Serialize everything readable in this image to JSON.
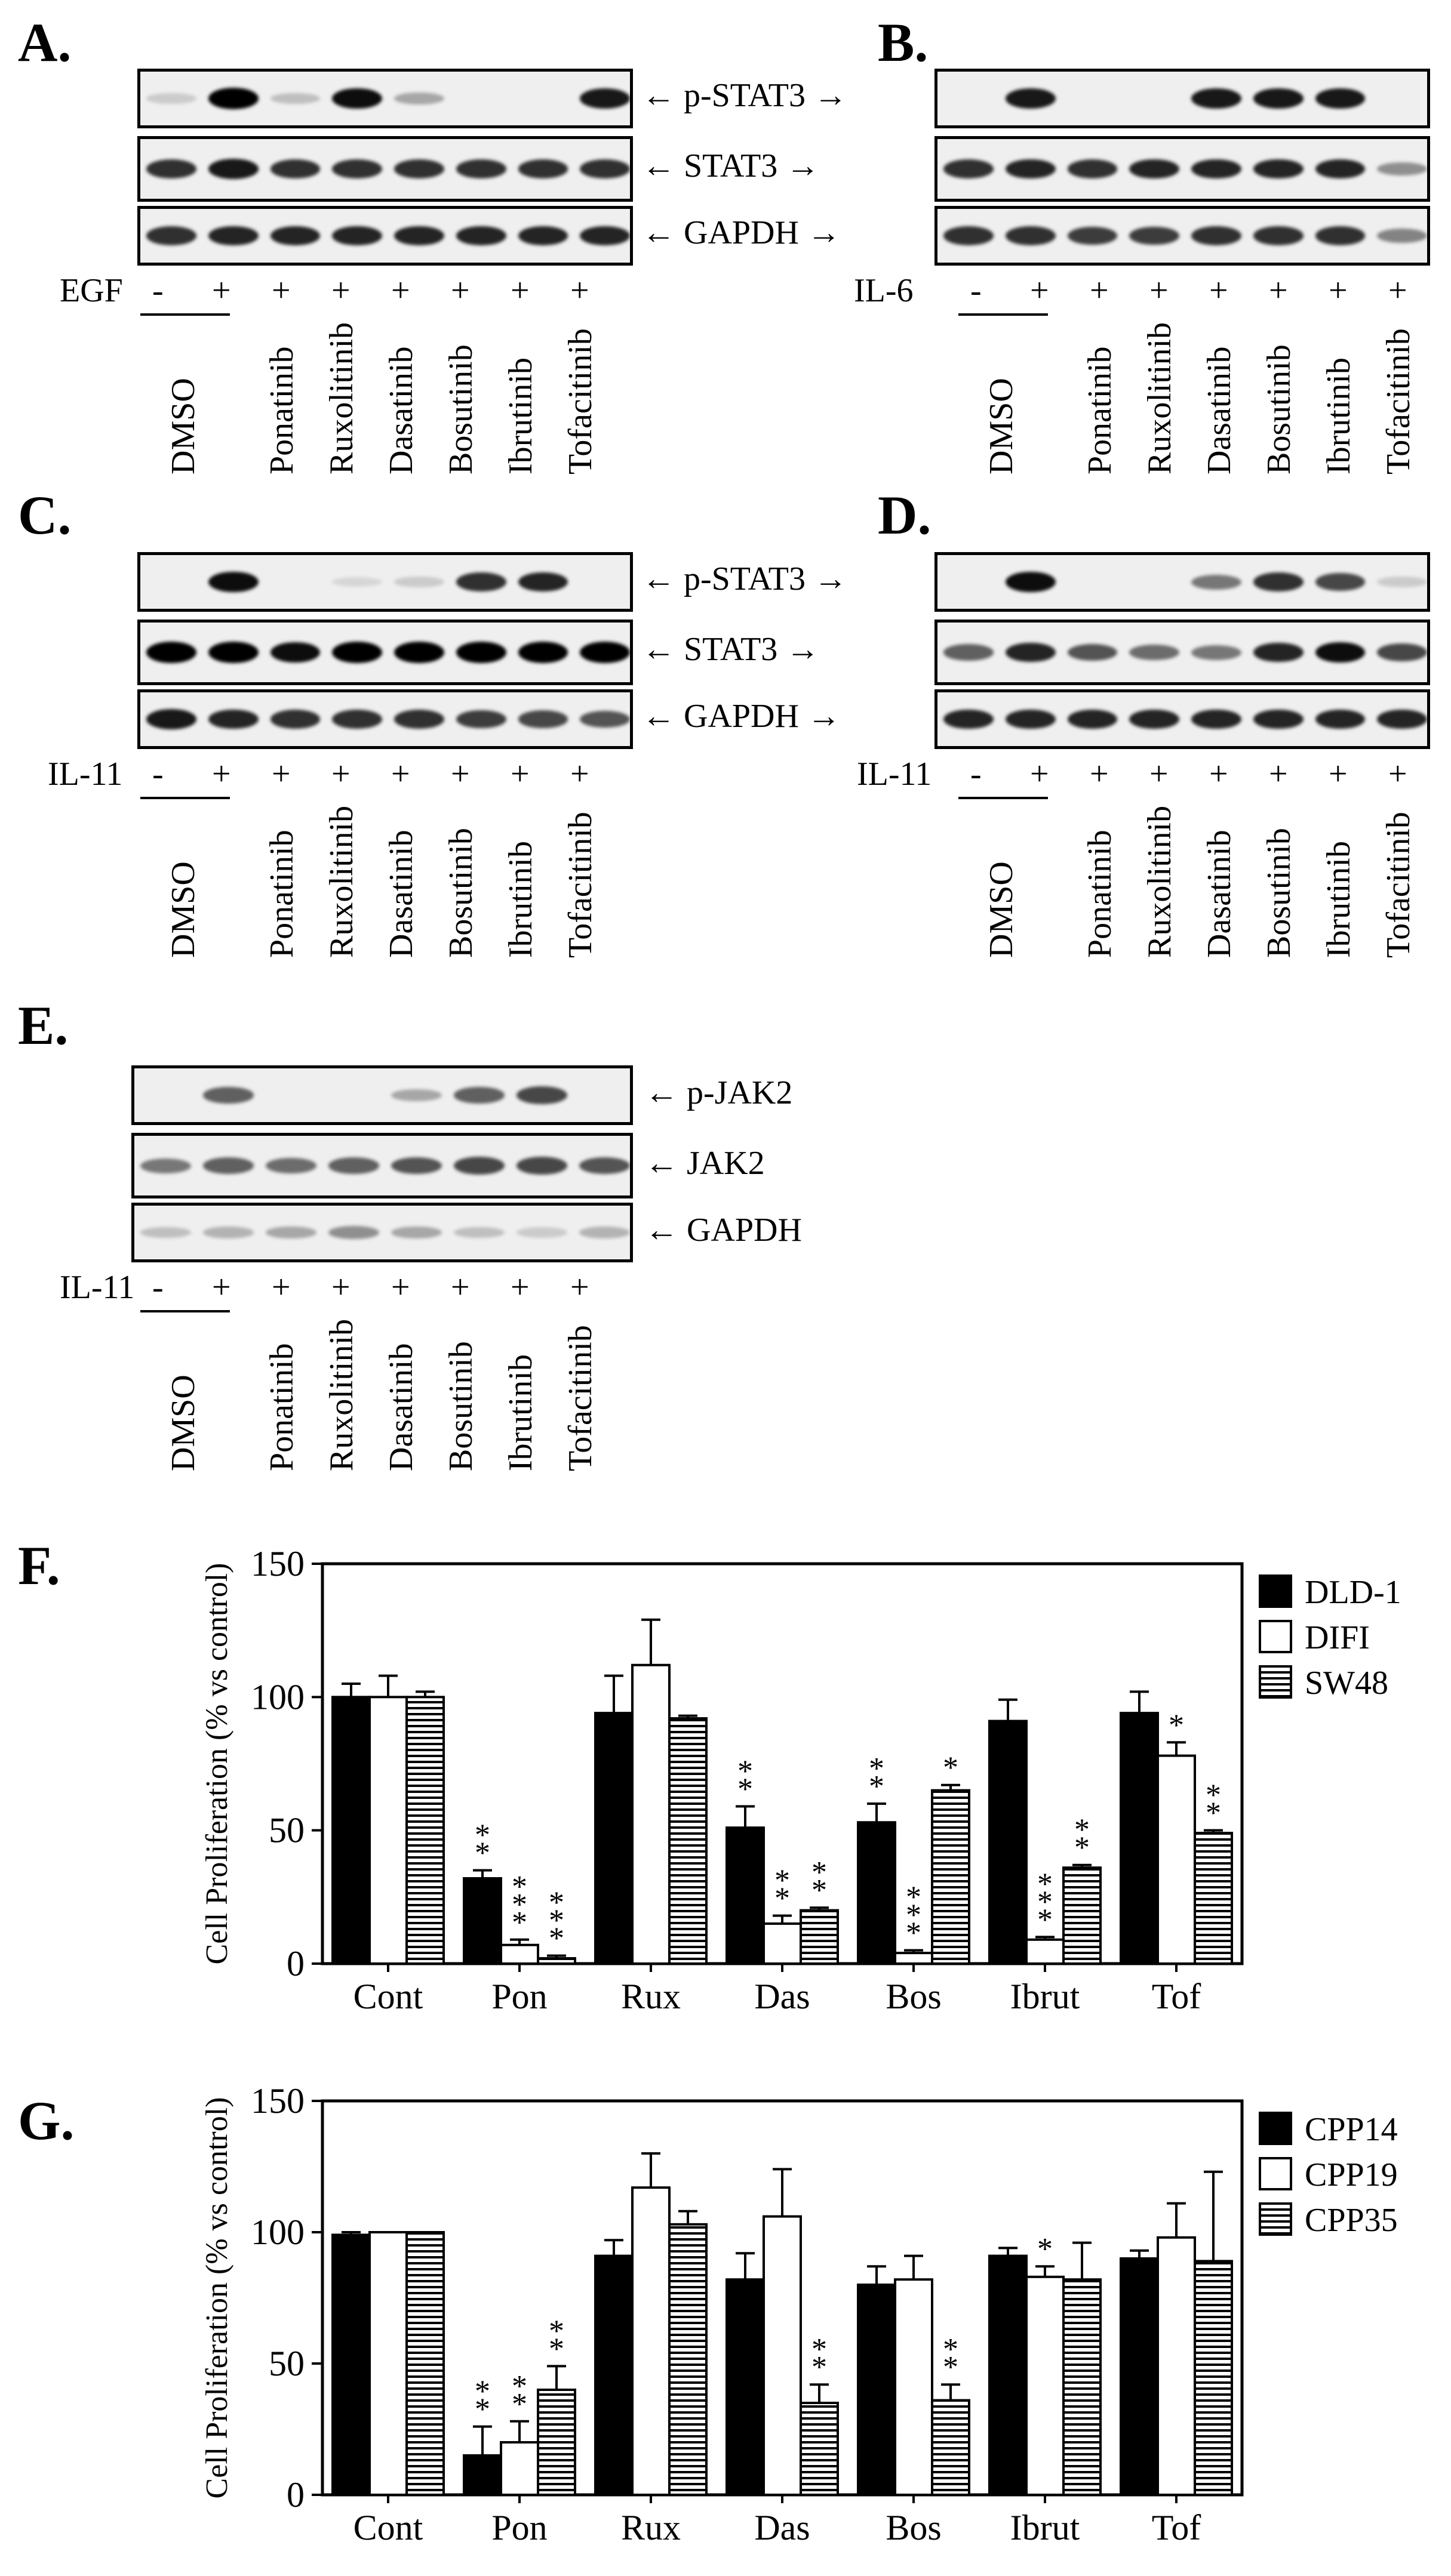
{
  "panels": {
    "A": {
      "letter": "A.",
      "stimulus": "EGF",
      "bands": [
        "p-STAT3",
        "STAT3",
        "GAPDH"
      ]
    },
    "B": {
      "letter": "B.",
      "stimulus": "IL-6",
      "bands": [
        "p-STAT3",
        "STAT3",
        "GAPDH"
      ]
    },
    "C": {
      "letter": "C.",
      "stimulus": "IL-11",
      "bands": [
        "p-STAT3",
        "STAT3",
        "GAPDH"
      ]
    },
    "D": {
      "letter": "D.",
      "stimulus": "IL-11",
      "bands": [
        "p-STAT3",
        "STAT3",
        "GAPDH"
      ]
    },
    "E": {
      "letter": "E.",
      "stimulus": "IL-11",
      "bands": [
        "p-JAK2",
        "JAK2",
        "GAPDH"
      ]
    },
    "F": {
      "letter": "F."
    },
    "G": {
      "letter": "G."
    }
  },
  "lane_signs": [
    "-",
    "+",
    "+",
    "+",
    "+",
    "+",
    "+",
    "+"
  ],
  "lane_labels": [
    "DMSO",
    "Ponatinib",
    "Ruxolitinib",
    "Dasatinib",
    "Bosutinib",
    "Ibrutinib",
    "Tofacitinib"
  ],
  "arrow": "←",
  "chart_data": [
    {
      "panel": "F",
      "type": "bar",
      "ylabel": "Cell Proliferation (% vs control)",
      "ylim": [
        0,
        150
      ],
      "yticks": [
        0,
        50,
        100,
        150
      ],
      "categories": [
        "Cont",
        "Pon",
        "Rux",
        "Das",
        "Bos",
        "Ibrut",
        "Tof"
      ],
      "legend_position": "right",
      "series": [
        {
          "name": "DLD-1",
          "fill": "black",
          "values": [
            100,
            32,
            94,
            51,
            53,
            91,
            94
          ],
          "errors": [
            5,
            3,
            14,
            8,
            7,
            8,
            8
          ],
          "sig": [
            "",
            "**",
            "",
            "**",
            "**",
            "",
            ""
          ]
        },
        {
          "name": "DIFI",
          "fill": "white",
          "values": [
            100,
            7,
            112,
            15,
            4,
            9,
            78
          ],
          "errors": [
            8,
            2,
            17,
            3,
            1,
            1,
            5
          ],
          "sig": [
            "",
            "***",
            "",
            "**",
            "***",
            "***",
            "*"
          ]
        },
        {
          "name": "SW48",
          "fill": "stripes",
          "values": [
            100,
            2,
            92,
            20,
            65,
            36,
            49
          ],
          "errors": [
            2,
            1,
            1,
            1,
            2,
            1,
            1
          ],
          "sig": [
            "",
            "***",
            "",
            "**",
            "*",
            "**",
            "**"
          ]
        }
      ]
    },
    {
      "panel": "G",
      "type": "bar",
      "ylabel": "Cell Proliferation (% vs control)",
      "ylim": [
        0,
        150
      ],
      "yticks": [
        0,
        50,
        100,
        150
      ],
      "categories": [
        "Cont",
        "Pon",
        "Rux",
        "Das",
        "Bos",
        "Ibrut",
        "Tof"
      ],
      "legend_position": "right",
      "series": [
        {
          "name": "CPP14",
          "fill": "black",
          "values": [
            99,
            15,
            91,
            82,
            80,
            91,
            90
          ],
          "errors": [
            1,
            11,
            6,
            10,
            7,
            3,
            3
          ],
          "sig": [
            "",
            "**",
            "",
            "",
            "",
            "",
            ""
          ]
        },
        {
          "name": "CPP19",
          "fill": "white",
          "values": [
            100,
            20,
            117,
            106,
            82,
            83,
            98
          ],
          "errors": [
            0,
            8,
            13,
            18,
            9,
            4,
            13
          ],
          "sig": [
            "",
            "**",
            "",
            "",
            "",
            "*",
            ""
          ]
        },
        {
          "name": "CPP35",
          "fill": "stripes",
          "values": [
            100,
            40,
            103,
            35,
            36,
            82,
            89
          ],
          "errors": [
            0,
            9,
            5,
            7,
            6,
            14,
            34
          ],
          "sig": [
            "",
            "**",
            "",
            "**",
            "**",
            "",
            ""
          ]
        }
      ]
    }
  ]
}
